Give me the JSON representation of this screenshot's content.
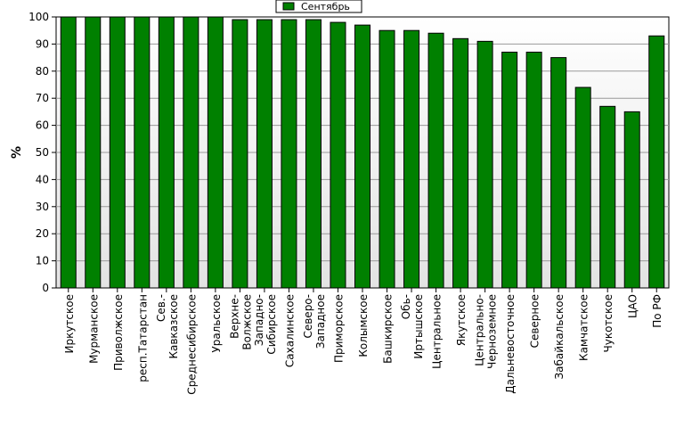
{
  "colors": {
    "bar_fill": "#008000",
    "bar_stroke": "#000000",
    "plot_background_top": "#ffffff",
    "plot_background_bottom": "#e3e3e3",
    "grid": "#9a9a9a"
  },
  "chart_data": {
    "type": "bar",
    "title": "",
    "xlabel": "",
    "ylabel": "%",
    "ylim": [
      0,
      100
    ],
    "yticks": [
      0,
      10,
      20,
      30,
      40,
      50,
      60,
      70,
      80,
      90,
      100
    ],
    "grid": true,
    "legend_position": "top-center",
    "categories": [
      [
        "Иркутское"
      ],
      [
        "Мурманское"
      ],
      [
        "Приволжское"
      ],
      [
        "респ.Татарстан"
      ],
      [
        "Сев.-",
        "Кавказское"
      ],
      [
        "Среднесибирское"
      ],
      [
        "Уральское"
      ],
      [
        "Верхне-",
        "Волжское"
      ],
      [
        "Западно-",
        "Сибирское"
      ],
      [
        "Сахалинское"
      ],
      [
        "Северо-",
        "Западное"
      ],
      [
        "Приморское"
      ],
      [
        "Колымское"
      ],
      [
        "Башкирское"
      ],
      [
        "Обь-",
        "Иртышское"
      ],
      [
        "Центральное"
      ],
      [
        "Якутское"
      ],
      [
        "Центрально-",
        "Черноземное"
      ],
      [
        "Дальневосточное"
      ],
      [
        "Северное"
      ],
      [
        "Забайкальское"
      ],
      [
        "Камчатское"
      ],
      [
        "Чукотское"
      ],
      [
        "ЦАО"
      ],
      [
        "По РФ"
      ]
    ],
    "series": [
      {
        "name": "Сентябрь",
        "values": [
          100,
          100,
          100,
          100,
          100,
          100,
          100,
          99,
          99,
          99,
          99,
          98,
          97,
          95,
          95,
          94,
          92,
          91,
          87,
          87,
          85,
          74,
          67,
          65,
          93
        ]
      }
    ]
  }
}
